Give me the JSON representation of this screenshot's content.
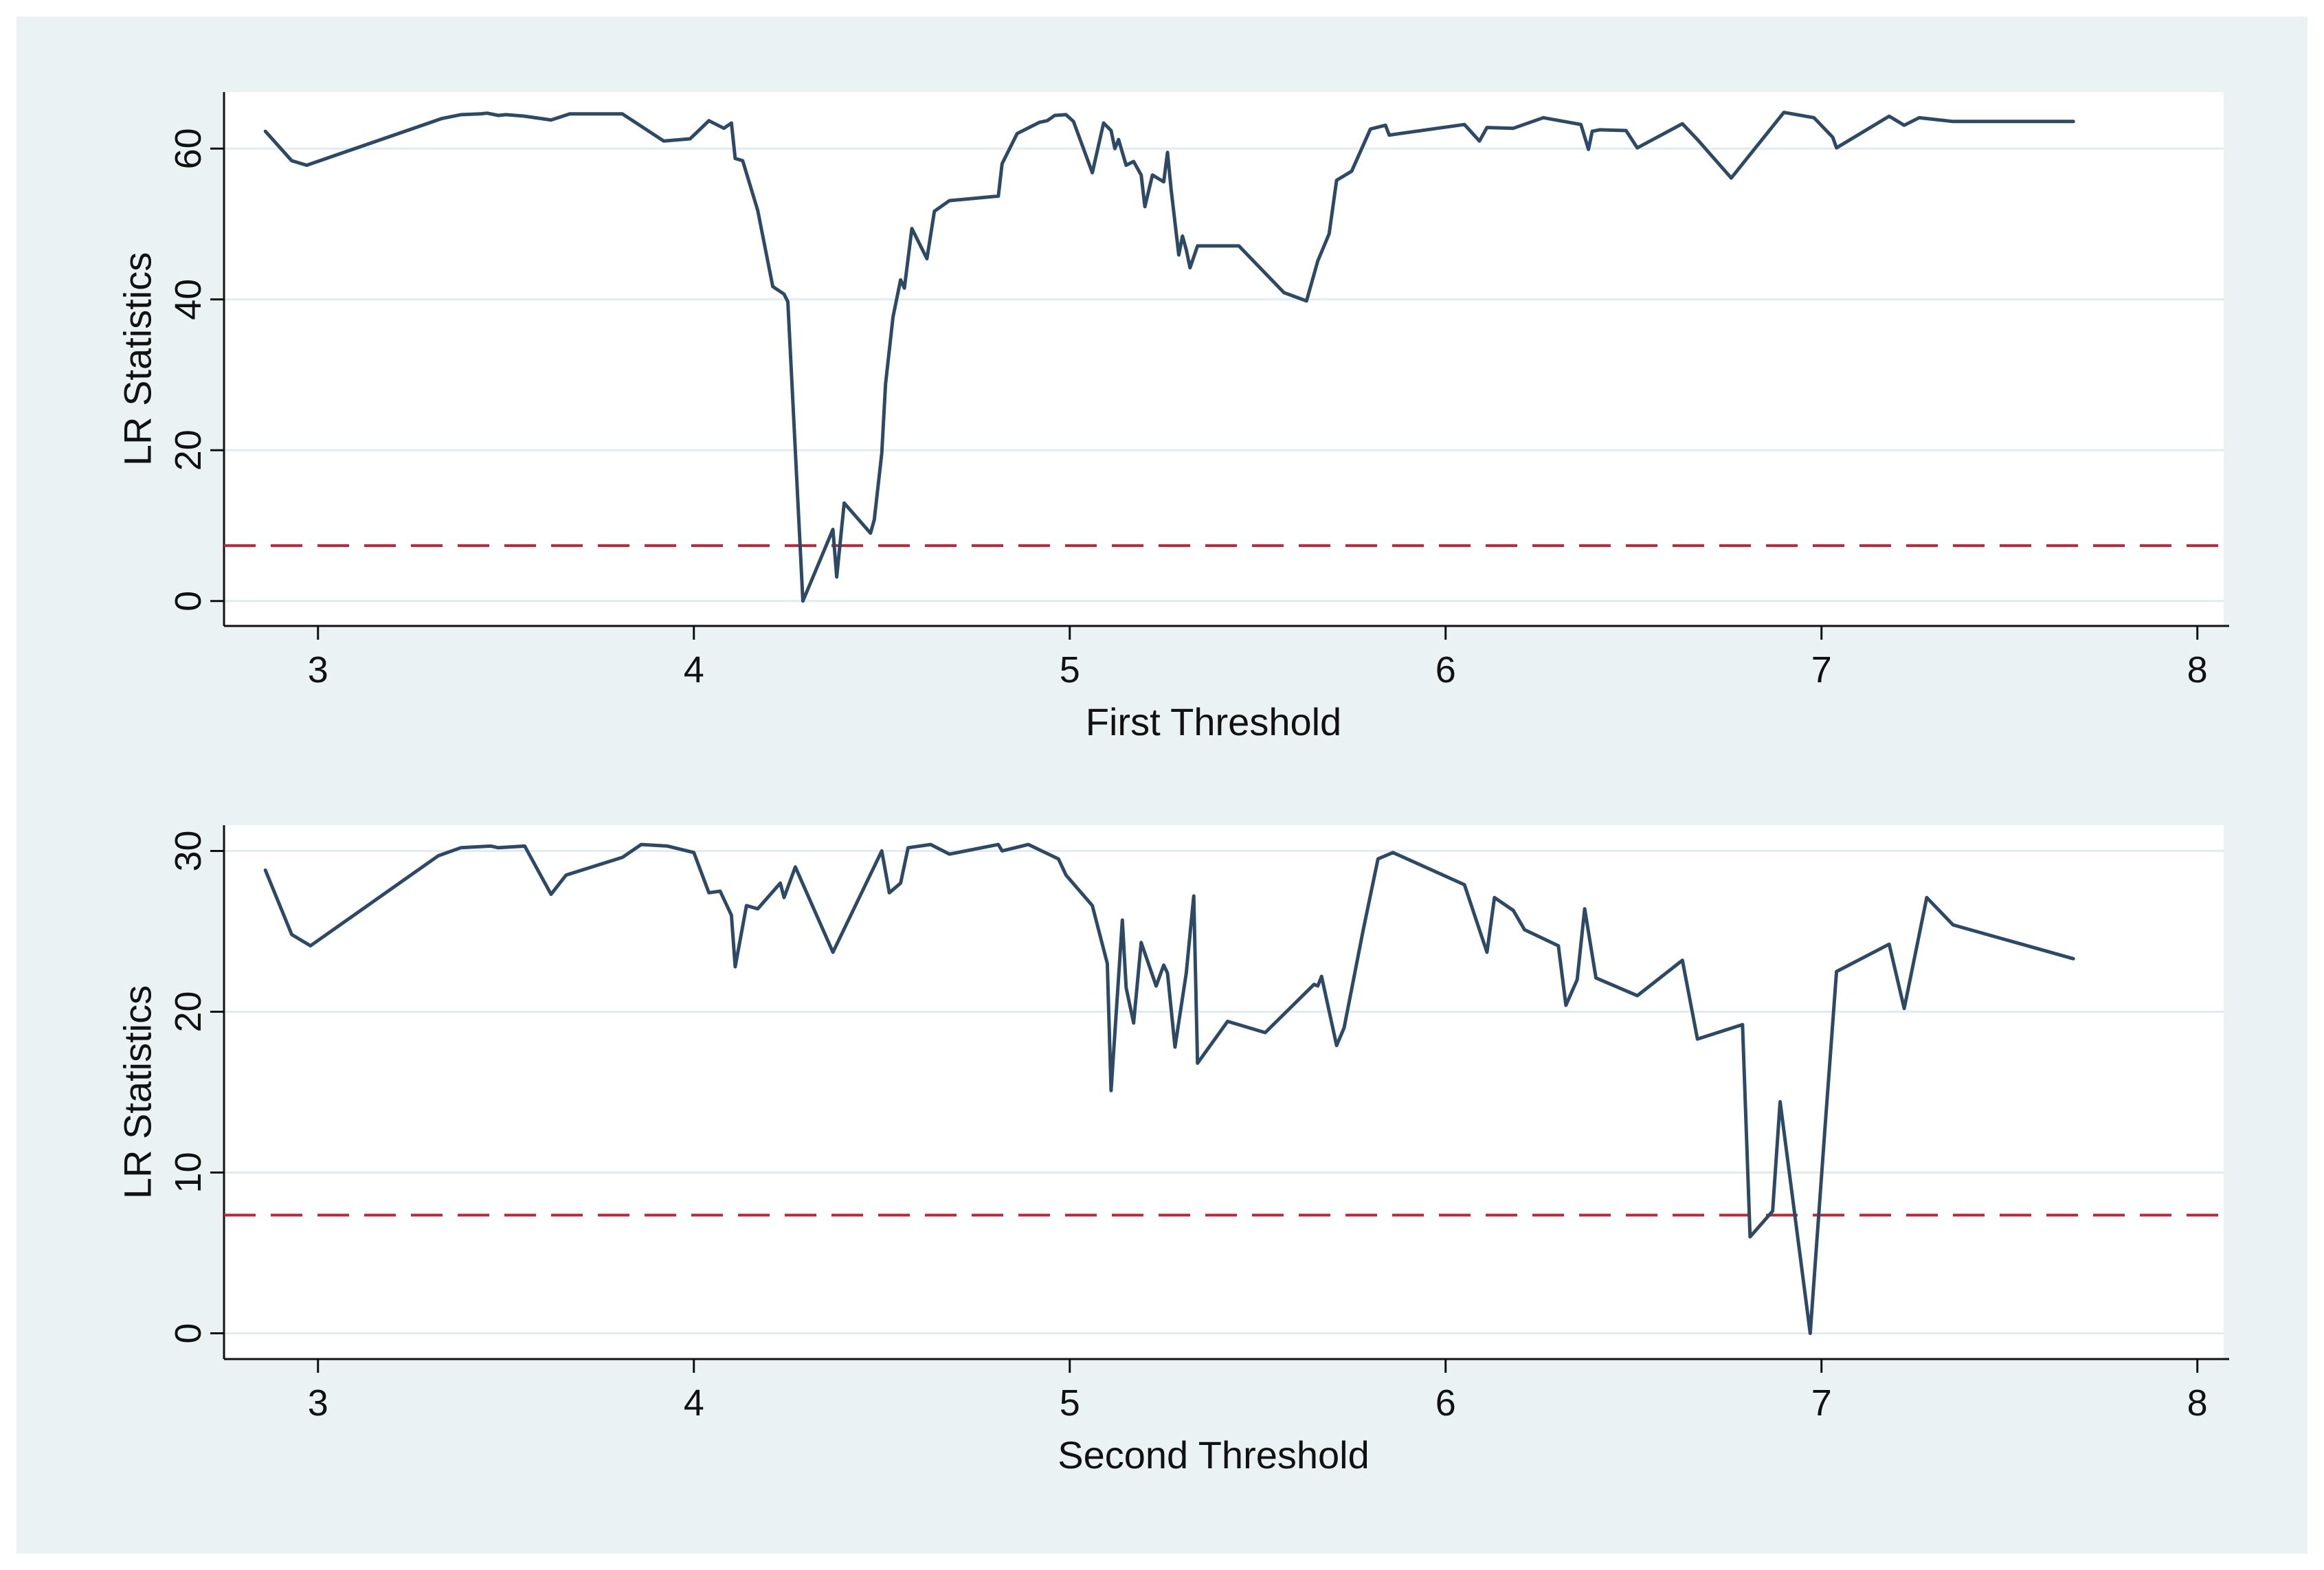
{
  "chart_data": [
    {
      "type": "line",
      "xlabel": "First Threshold",
      "ylabel": "LR Statistics",
      "xlim": [
        2.75,
        8.07
      ],
      "ylim": [
        -3.3,
        67.5
      ],
      "xticks": [
        3,
        4,
        5,
        6,
        7,
        8
      ],
      "yticks": [
        0,
        20,
        40,
        60
      ],
      "grid": true,
      "critical_value": 7.35,
      "colors": {
        "series": "#2c4a66",
        "critical": "#c0243a",
        "plot_bg": "#ffffff",
        "figure_bg": "#eaf2f3",
        "grid": "#e0ecef"
      },
      "series": [
        {
          "x": [
            2.86,
            2.93,
            2.97,
            3.33,
            3.38,
            3.43,
            3.45,
            3.48,
            3.5,
            3.55,
            3.62,
            3.67,
            3.81,
            3.92,
            3.99,
            4.04,
            4.08,
            4.1,
            4.11,
            4.13,
            4.17,
            4.21,
            4.24,
            4.25,
            4.29,
            4.37,
            4.38,
            4.4,
            4.47,
            4.48,
            4.5,
            4.51,
            4.53,
            4.55,
            4.56,
            4.58,
            4.62,
            4.64,
            4.68,
            4.81,
            4.82,
            4.86,
            4.92,
            4.94,
            4.96,
            4.99,
            5.01,
            5.06,
            5.09,
            5.11,
            5.12,
            5.13,
            5.15,
            5.17,
            5.19,
            5.2,
            5.22,
            5.25,
            5.26,
            5.27,
            5.29,
            5.3,
            5.31,
            5.32,
            5.34,
            5.45,
            5.57,
            5.63,
            5.66,
            5.69,
            5.71,
            5.75,
            5.8,
            5.84,
            5.85,
            6.05,
            6.09,
            6.11,
            6.18,
            6.26,
            6.36,
            6.38,
            6.39,
            6.41,
            6.48,
            6.51,
            6.63,
            6.67,
            6.76,
            6.9,
            6.98,
            7.03,
            7.04,
            7.18,
            7.22,
            7.26,
            7.35,
            7.67
          ],
          "y": [
            62.3,
            58.4,
            57.8,
            64.0,
            64.5,
            64.6,
            64.7,
            64.4,
            64.5,
            64.3,
            63.8,
            64.6,
            64.6,
            61.0,
            61.3,
            63.7,
            62.7,
            63.4,
            58.7,
            58.4,
            51.8,
            41.7,
            40.7,
            39.7,
            0.0,
            9.5,
            3.2,
            13.0,
            9.0,
            10.8,
            19.6,
            28.8,
            37.7,
            42.6,
            41.5,
            49.4,
            45.4,
            51.7,
            53.1,
            53.7,
            58.0,
            62.0,
            63.5,
            63.7,
            64.4,
            64.5,
            63.6,
            56.8,
            63.4,
            62.4,
            60.0,
            61.2,
            57.8,
            58.3,
            56.5,
            52.3,
            56.5,
            55.6,
            59.5,
            54.5,
            45.9,
            48.4,
            46.6,
            44.2,
            47.1,
            47.1,
            40.9,
            39.8,
            45.1,
            48.7,
            55.8,
            57.0,
            62.6,
            63.1,
            61.8,
            63.2,
            61.0,
            62.8,
            62.7,
            64.1,
            63.2,
            59.9,
            62.3,
            62.5,
            62.4,
            60.1,
            63.3,
            61.2,
            56.1,
            64.8,
            64.1,
            61.5,
            60.1,
            64.3,
            63.1,
            64.1,
            63.6,
            63.6
          ]
        }
      ]
    },
    {
      "type": "line",
      "xlabel": "Second Threshold",
      "ylabel": "LR Statistics",
      "xlim": [
        2.75,
        8.07
      ],
      "ylim": [
        -1.6,
        31.6
      ],
      "xticks": [
        3,
        4,
        5,
        6,
        7,
        8
      ],
      "yticks": [
        0,
        10,
        20,
        30
      ],
      "grid": true,
      "critical_value": 7.35,
      "colors": {
        "series": "#2c4a66",
        "critical": "#c0243a",
        "plot_bg": "#ffffff",
        "figure_bg": "#eaf2f3",
        "grid": "#e0ecef"
      },
      "series": [
        {
          "x": [
            2.86,
            2.93,
            2.98,
            3.32,
            3.38,
            3.46,
            3.48,
            3.55,
            3.62,
            3.66,
            3.81,
            3.86,
            3.93,
            4.0,
            4.04,
            4.07,
            4.1,
            4.11,
            4.14,
            4.17,
            4.23,
            4.24,
            4.27,
            4.37,
            4.5,
            4.52,
            4.55,
            4.57,
            4.63,
            4.68,
            4.81,
            4.82,
            4.89,
            4.97,
            4.99,
            5.06,
            5.1,
            5.11,
            5.14,
            5.15,
            5.17,
            5.19,
            5.23,
            5.25,
            5.26,
            5.28,
            5.31,
            5.33,
            5.34,
            5.42,
            5.52,
            5.65,
            5.66,
            5.67,
            5.71,
            5.73,
            5.78,
            5.82,
            5.86,
            6.05,
            6.11,
            6.13,
            6.18,
            6.21,
            6.3,
            6.32,
            6.35,
            6.37,
            6.4,
            6.51,
            6.63,
            6.67,
            6.79,
            6.81,
            6.87,
            6.89,
            6.97,
            7.01,
            7.04,
            7.18,
            7.22,
            7.28,
            7.35,
            7.67
          ],
          "y": [
            28.8,
            24.8,
            24.1,
            29.7,
            30.2,
            30.3,
            30.2,
            30.3,
            27.3,
            28.5,
            29.6,
            30.4,
            30.3,
            29.9,
            27.4,
            27.5,
            26.0,
            22.8,
            26.6,
            26.4,
            28.0,
            27.1,
            29.0,
            23.7,
            30.0,
            27.4,
            28.0,
            30.2,
            30.4,
            29.8,
            30.4,
            30.0,
            30.4,
            29.5,
            28.5,
            26.6,
            23.0,
            15.1,
            25.7,
            21.5,
            19.3,
            24.3,
            21.6,
            22.9,
            22.4,
            17.8,
            22.4,
            27.2,
            16.8,
            19.4,
            18.7,
            21.7,
            21.6,
            22.2,
            17.9,
            19.0,
            25.0,
            29.5,
            29.9,
            27.9,
            23.7,
            27.1,
            26.3,
            25.1,
            24.1,
            20.4,
            22.0,
            26.4,
            22.1,
            21.0,
            23.2,
            18.3,
            19.2,
            6.0,
            7.6,
            14.4,
            0.0,
            13.0,
            22.5,
            24.2,
            20.2,
            27.1,
            25.4,
            23.3
          ]
        }
      ]
    }
  ]
}
